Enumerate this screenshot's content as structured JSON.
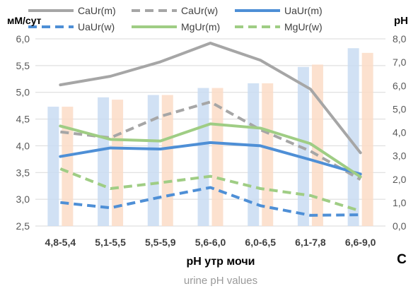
{
  "chart_data": {
    "type": "line",
    "panel_letter": "C",
    "y_left_unit": "мМ/сут",
    "y_right_unit": "pH",
    "xlabel": "pH утр мочи",
    "xlabel_sub": "urine pH values",
    "categories": [
      "4,8-5,4",
      "5,1-5,5",
      "5,5-5,9",
      "5,6-6,0",
      "6,0-6,5",
      "6,1-7,8",
      "6,6-9,0"
    ],
    "y_left": {
      "min": 2.5,
      "max": 6.0,
      "step": 0.5,
      "ticks": [
        "2,5",
        "3,0",
        "3,5",
        "4,0",
        "4,5",
        "5,0",
        "5,5",
        "6,0"
      ]
    },
    "y_right": {
      "min": 0.0,
      "max": 8.0,
      "step": 1.0,
      "ticks": [
        "0,0",
        "1,0",
        "2,0",
        "3,0",
        "4,0",
        "5,0",
        "6,0",
        "7,0",
        "8,0"
      ]
    },
    "grid": true,
    "legend_position": "top",
    "bars": [
      {
        "values": [
          5.1,
          5.5,
          5.6,
          5.9,
          6.1,
          6.8,
          7.6
        ],
        "color": "#c9dcf2"
      },
      {
        "values": [
          5.1,
          5.4,
          5.6,
          5.9,
          6.1,
          6.9,
          7.4
        ],
        "color": "#fbdcc7"
      }
    ],
    "series": [
      {
        "name": "CaUr(m)",
        "color": "#a6a6a6",
        "dash": "solid",
        "values": [
          5.14,
          5.3,
          5.57,
          5.92,
          5.6,
          5.06,
          3.87
        ]
      },
      {
        "name": "CaUr(w)",
        "color": "#a6a6a6",
        "dash": "dashed",
        "values": [
          4.26,
          4.15,
          4.55,
          4.82,
          4.3,
          3.9,
          3.37
        ]
      },
      {
        "name": "UaUr(m)",
        "color": "#4e8fd6",
        "dash": "solid",
        "values": [
          3.8,
          3.96,
          3.94,
          4.06,
          4.0,
          3.74,
          3.47
        ]
      },
      {
        "name": "UaUr(w)",
        "color": "#4e8fd6",
        "dash": "dashed",
        "values": [
          2.94,
          2.84,
          3.04,
          3.22,
          2.88,
          2.7,
          2.71
        ]
      },
      {
        "name": "MgUr(m)",
        "color": "#9fcd84",
        "dash": "solid",
        "values": [
          4.37,
          4.12,
          4.09,
          4.41,
          4.33,
          4.04,
          3.42
        ]
      },
      {
        "name": "MgUr(w)",
        "color": "#9fcd84",
        "dash": "dashed",
        "values": [
          3.57,
          3.2,
          3.31,
          3.43,
          3.2,
          3.07,
          2.78
        ]
      }
    ]
  }
}
